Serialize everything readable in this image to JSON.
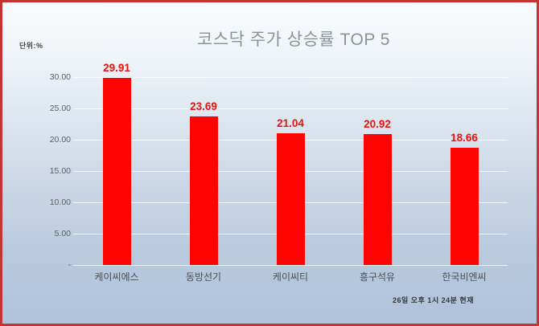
{
  "frame": {
    "unit_label": "단위:%",
    "timestamp": "26일 오후 1시 24분 현재"
  },
  "colors": {
    "bar": "#fe0400",
    "value_label": "#e8120e",
    "frame_border": "#c53434",
    "gridline": "rgba(255,255,255,0.75)"
  },
  "chart_data": {
    "type": "bar",
    "title": "코스닥 주가 상승률 TOP 5",
    "unit": "%",
    "categories": [
      "케이씨에스",
      "동방선기",
      "케이씨티",
      "흥구석유",
      "한국비엔씨"
    ],
    "values": [
      29.91,
      23.69,
      21.04,
      20.92,
      18.66
    ],
    "value_labels": [
      "29.91",
      "23.69",
      "21.04",
      "20.92",
      "18.66"
    ],
    "y_ticks": [
      {
        "value": 30,
        "label": "30.00"
      },
      {
        "value": 25,
        "label": "25.00"
      },
      {
        "value": 20,
        "label": "20.00"
      },
      {
        "value": 15,
        "label": "15.00"
      },
      {
        "value": 10,
        "label": "10.00"
      },
      {
        "value": 5,
        "label": "5.00"
      },
      {
        "value": 0,
        "label": "-"
      }
    ],
    "ylim": [
      0,
      30
    ],
    "grid": true,
    "legend": false,
    "xlabel": "",
    "ylabel": ""
  }
}
